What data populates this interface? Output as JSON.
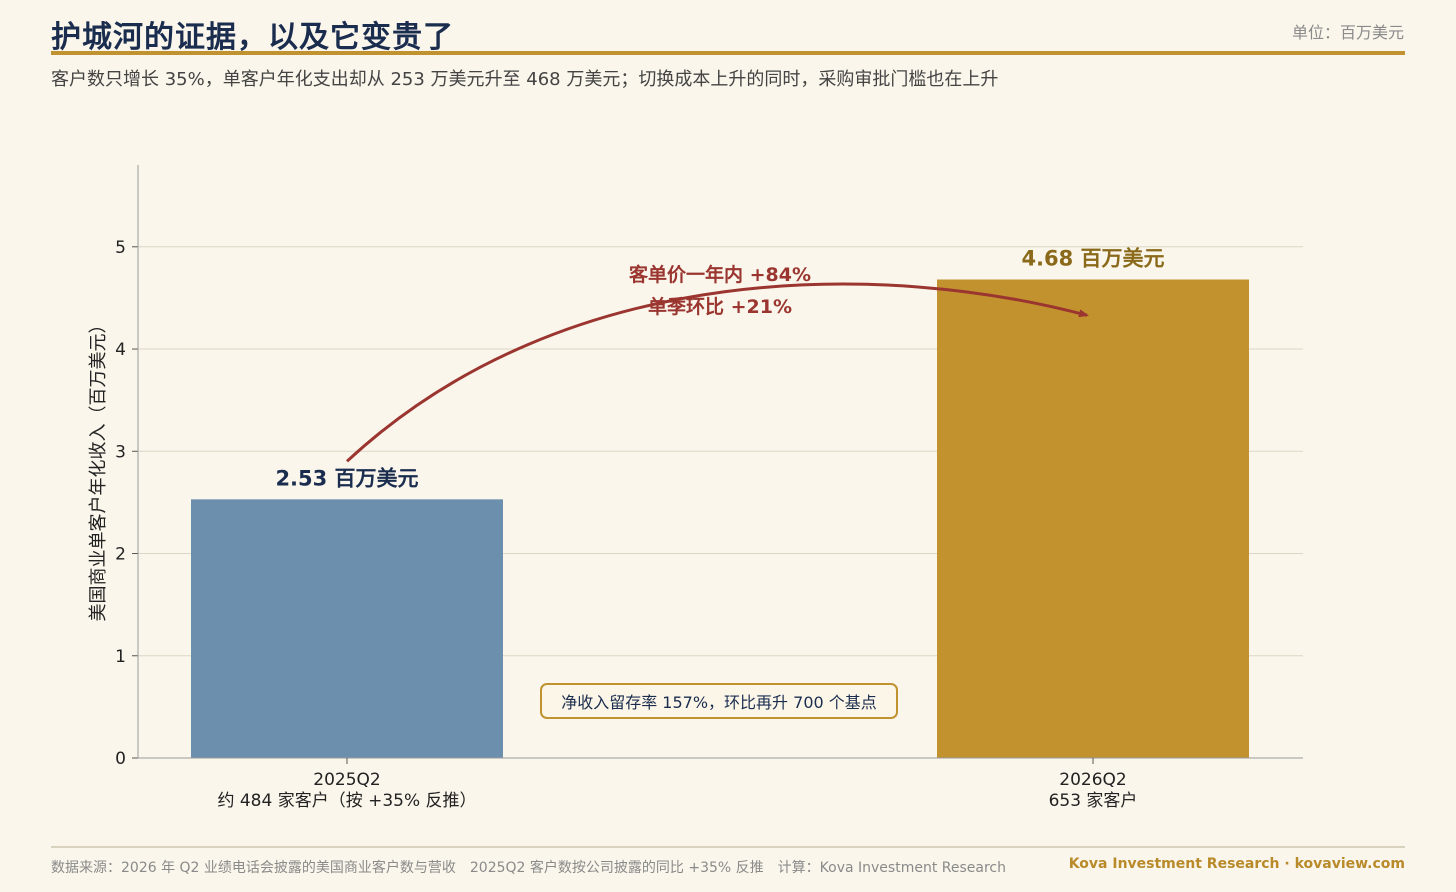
{
  "header": {
    "title": "护城河的证据，以及它变贵了",
    "unit": "单位：百万美元",
    "subtitle": "客户数只增长 35%，单客户年化支出却从 253 万美元升至 468 万美元；切换成本上升的同时，采购审批门槛也在上升"
  },
  "chart_data": {
    "type": "bar",
    "categories": [
      "2025Q2",
      "2026Q2"
    ],
    "category_sublabels": [
      "约 484 家客户（按 +35% 反推）",
      "653 家客户"
    ],
    "values": [
      2.53,
      4.68
    ],
    "data_labels": [
      "2.53 百万美元",
      "4.68 百万美元"
    ],
    "bar_colors": [
      "#6d8fae",
      "#c1922e"
    ],
    "data_label_colors": [
      "#1b2d4f",
      "#8a6a1a"
    ],
    "ylabel": "美国商业单客户年化收入（百万美元）",
    "ylim": [
      0,
      5.8
    ],
    "yticks": [
      0,
      1,
      2,
      3,
      4,
      5
    ],
    "grid": true,
    "annotations": {
      "arrow_label_line1": "客单价一年内 +84%",
      "arrow_label_line2": "单季环比 +21%",
      "arrow_color": "#9b3530",
      "box_text": "净收入留存率 157%，环比再升 700 个基点"
    }
  },
  "footer": {
    "source": "数据来源：2026 年 Q2 业绩电话会披露的美国商业客户数与营收　2025Q2 客户数按公司披露的同比 +35% 反推　计算：Kova Investment Research",
    "brand": "Kova Investment Research · kovaview.com"
  }
}
